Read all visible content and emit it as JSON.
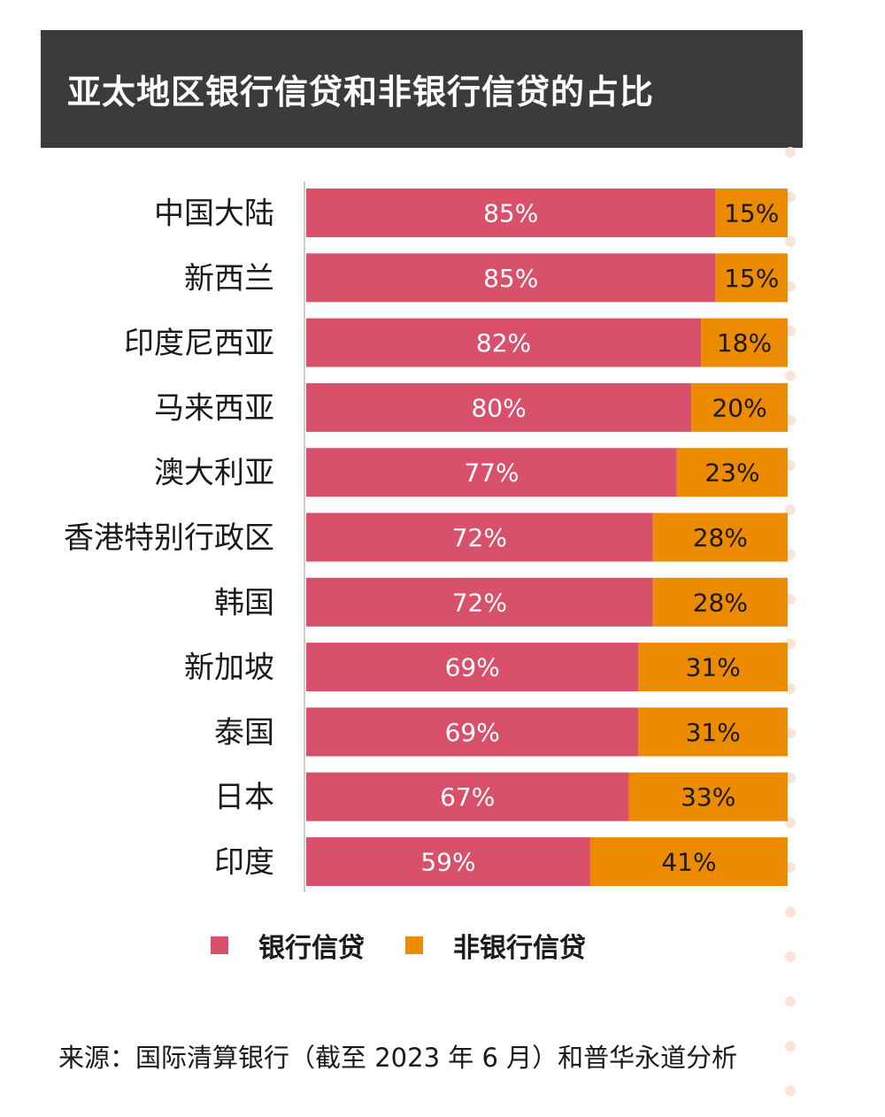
{
  "colors": {
    "bank": "#d9506a",
    "nonbank": "#ec8a00",
    "title_bg": "#3b3b3b",
    "axis": "#cccccc",
    "dot": "#fbe3d6"
  },
  "chart_data": {
    "type": "bar",
    "orientation": "horizontal",
    "stacked": true,
    "percent": true,
    "title": "亚太地区银行信贷和非银行信贷的占比",
    "categories": [
      "中国大陆",
      "新西兰",
      "印度尼西亚",
      "马来西亚",
      "澳大利亚",
      "香港特别行政区",
      "韩国",
      "新加坡",
      "泰国",
      "日本",
      "印度"
    ],
    "series": [
      {
        "name": "银行信贷",
        "values": [
          85,
          85,
          82,
          80,
          77,
          72,
          72,
          69,
          69,
          67,
          59
        ],
        "labels": [
          "85%",
          "85%",
          "82%",
          "80%",
          "77%",
          "72%",
          "72%",
          "69%",
          "69%",
          "67%",
          "59%"
        ]
      },
      {
        "name": "非银行信贷",
        "values": [
          15,
          15,
          18,
          20,
          23,
          28,
          28,
          31,
          31,
          33,
          41
        ],
        "labels": [
          "15%",
          "15%",
          "18%",
          "20%",
          "23%",
          "28%",
          "28%",
          "31%",
          "31%",
          "33%",
          "41%"
        ]
      }
    ],
    "xlim": [
      0,
      100
    ],
    "legend_position": "bottom",
    "grid": false
  },
  "source": "来源：国际清算银行（截至 2023 年 6 月）和普华永道分析"
}
